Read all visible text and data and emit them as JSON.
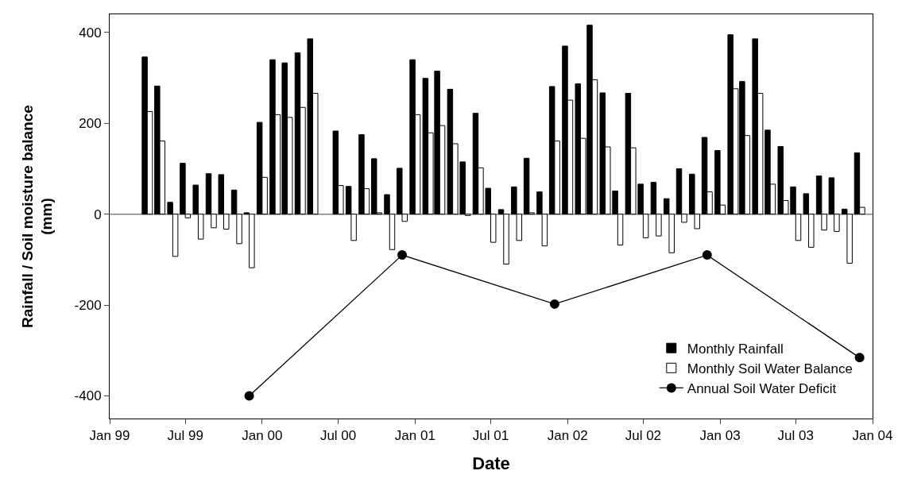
{
  "chart_data": {
    "type": "bar",
    "xlabel": "Date",
    "ylabel": "Rainfall / Soil moisture balance (mm)",
    "x": [
      "1999-04",
      "1999-05",
      "1999-06",
      "1999-07",
      "1999-08",
      "1999-09",
      "1999-10",
      "1999-11",
      "1999-12",
      "2000-01",
      "2000-02",
      "2000-03",
      "2000-04",
      "2000-05",
      "2000-06",
      "2000-07",
      "2000-08",
      "2000-09",
      "2000-10",
      "2000-11",
      "2000-12",
      "2001-01",
      "2001-02",
      "2001-03",
      "2001-04",
      "2001-05",
      "2001-06",
      "2001-07",
      "2001-08",
      "2001-09",
      "2001-10",
      "2001-11",
      "2001-12",
      "2002-01",
      "2002-02",
      "2002-03",
      "2002-04",
      "2002-05",
      "2002-06",
      "2002-07",
      "2002-08",
      "2002-09",
      "2002-10",
      "2002-11",
      "2002-12",
      "2003-01",
      "2003-02",
      "2003-03",
      "2003-04",
      "2003-05",
      "2003-06",
      "2003-07",
      "2003-08",
      "2003-09",
      "2003-10",
      "2003-11",
      "2003-12"
    ],
    "series": [
      {
        "name": "Monthly Rainfall",
        "color": "#000000",
        "values": [
          346,
          282,
          26,
          112,
          64,
          89,
          87,
          53,
          3,
          202,
          340,
          333,
          355,
          386,
          null,
          183,
          61,
          175,
          122,
          43,
          101,
          340,
          299,
          315,
          275,
          115,
          222,
          57,
          10,
          60,
          123,
          49,
          281,
          370,
          287,
          416,
          267,
          51,
          266,
          66,
          70,
          34,
          100,
          88,
          169,
          140,
          395,
          292,
          386,
          185,
          149,
          60,
          45,
          84,
          80,
          11,
          135
        ]
      },
      {
        "name": "Monthly Soil Water Balance",
        "color": "#ffffff",
        "values": [
          226,
          161,
          -93,
          -8,
          -55,
          -30,
          -33,
          -65,
          -118,
          81,
          219,
          213,
          235,
          266,
          null,
          63,
          -58,
          56,
          3,
          -78,
          -16,
          219,
          179,
          195,
          155,
          -3,
          102,
          -62,
          -110,
          -58,
          3,
          -70,
          161,
          251,
          167,
          296,
          148,
          -68,
          146,
          -52,
          -48,
          -85,
          -18,
          -32,
          49,
          20,
          276,
          173,
          266,
          66,
          30,
          -58,
          -73,
          -35,
          -38,
          -108,
          15
        ]
      },
      {
        "name": "Annual Soil Water Deficit",
        "type": "line",
        "color": "#000000",
        "marker": "circle",
        "x": [
          "1999-12",
          "2000-12",
          "2001-12",
          "2002-12",
          "2003-12"
        ],
        "values": [
          -400,
          -90,
          -198,
          -90,
          -316
        ]
      }
    ],
    "xlim": [
      "1999-01-01",
      "2004-01-01"
    ],
    "xticks": [
      {
        "value": "1999-01-01",
        "label": "Jan 99"
      },
      {
        "value": "1999-07-01",
        "label": "Jul 99"
      },
      {
        "value": "2000-01-01",
        "label": "Jan 00"
      },
      {
        "value": "2000-07-01",
        "label": "Jul 00"
      },
      {
        "value": "2001-01-01",
        "label": "Jan 01"
      },
      {
        "value": "2001-07-01",
        "label": "Jul 01"
      },
      {
        "value": "2002-01-01",
        "label": "Jan 02"
      },
      {
        "value": "2002-07-01",
        "label": "Jul 02"
      },
      {
        "value": "2003-01-01",
        "label": "Jan 03"
      },
      {
        "value": "2003-07-01",
        "label": "Jul 03"
      },
      {
        "value": "2004-01-01",
        "label": "Jan 04"
      }
    ],
    "ylim": [
      -450,
      440
    ],
    "yticks": [
      -400,
      -200,
      0,
      200,
      400
    ],
    "ref_lines": [
      {
        "axis": "y",
        "value": 0,
        "color": "#808080"
      }
    ],
    "grid": false,
    "legend": "bottom right"
  }
}
